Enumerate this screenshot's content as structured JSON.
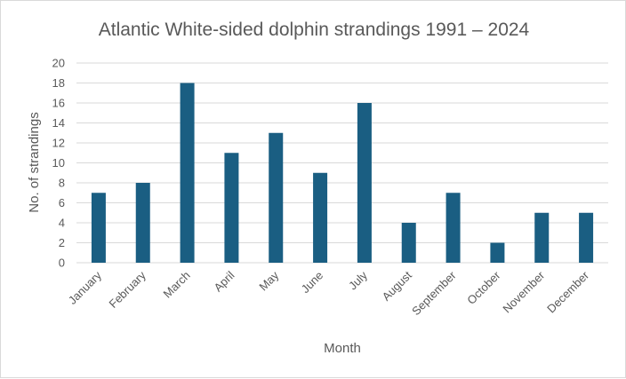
{
  "chart_data": {
    "type": "bar",
    "title": "Atlantic White-sided dolphin strandings 1991 – 2024",
    "xlabel": "Month",
    "ylabel": "No. of strandings",
    "categories": [
      "January",
      "February",
      "March",
      "April",
      "May",
      "June",
      "July",
      "August",
      "September",
      "October",
      "November",
      "December"
    ],
    "values": [
      7,
      8,
      18,
      11,
      13,
      9,
      16,
      4,
      7,
      2,
      5,
      5
    ],
    "ylim": [
      0,
      20
    ],
    "yticks": [
      0,
      2,
      4,
      6,
      8,
      10,
      12,
      14,
      16,
      18,
      20
    ],
    "grid": true,
    "legend": "none",
    "bar_color": "#1a5e82",
    "grid_color": "#d9d9d9",
    "text_color": "#595959"
  }
}
